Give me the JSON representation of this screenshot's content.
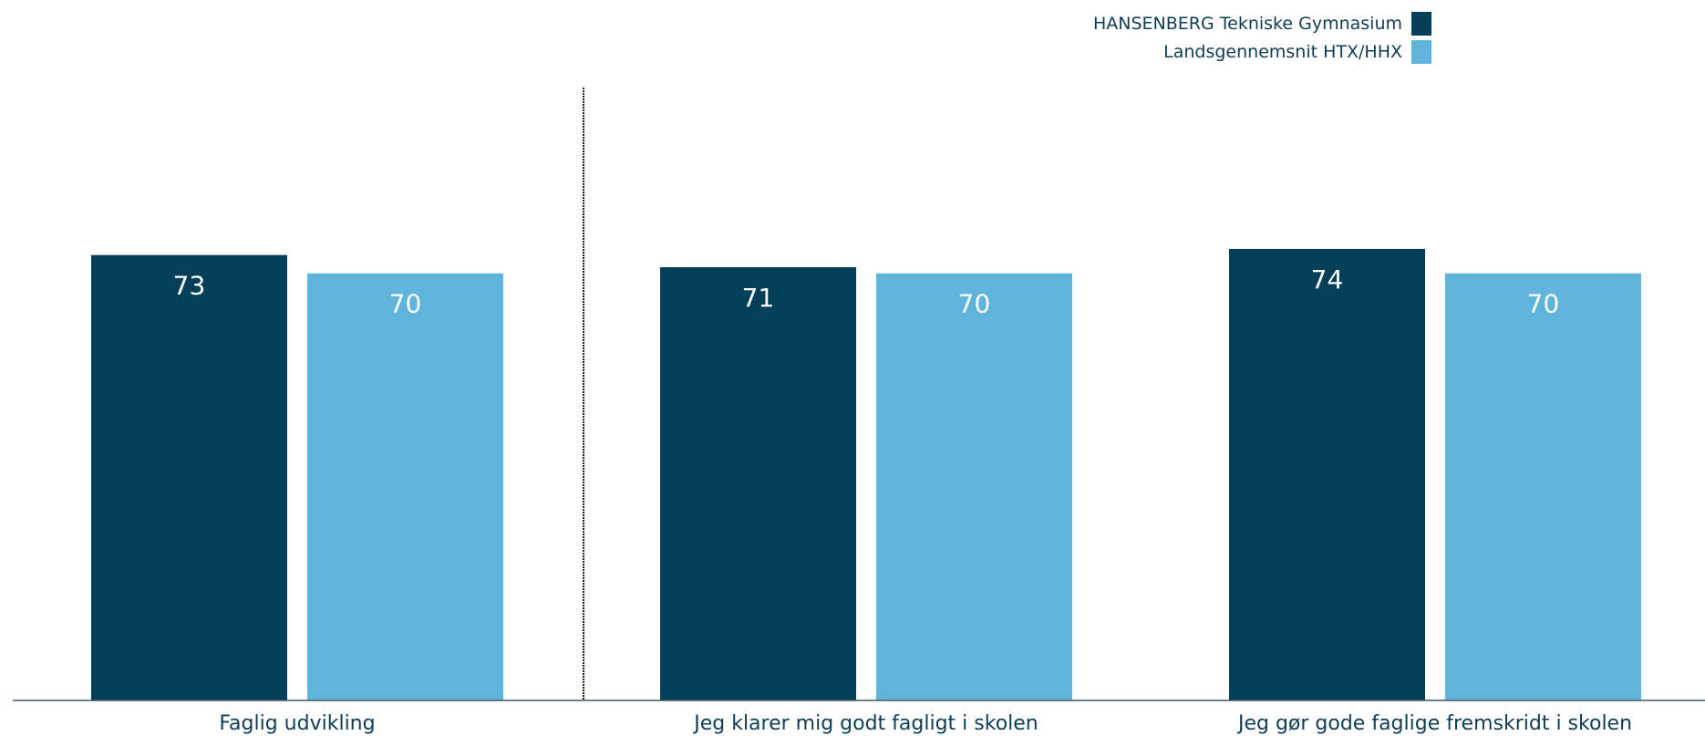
{
  "chart_data": {
    "type": "bar",
    "categories": [
      "Faglig udvikling",
      "Jeg klarer mig godt fagligt i skolen",
      "Jeg gør gode faglige fremskridt i skolen"
    ],
    "series": [
      {
        "name": "HANSENBERG Tekniske Gymnasium",
        "values": [
          73,
          71,
          74
        ],
        "color": "#033f58"
      },
      {
        "name": "Landsgennemsnit HTX/HHX",
        "values": [
          70,
          70,
          70
        ],
        "color": "#5fb4db"
      }
    ],
    "title": "",
    "xlabel": "",
    "ylabel": "",
    "ylim": [
      0,
      100
    ],
    "grid": false,
    "legend": "top-right",
    "separator_after_category": 0,
    "colors": {
      "axis": "#4a5a66",
      "separator": "#222222",
      "label_text": "#0d3d57",
      "value_text": "#ffffff"
    }
  }
}
